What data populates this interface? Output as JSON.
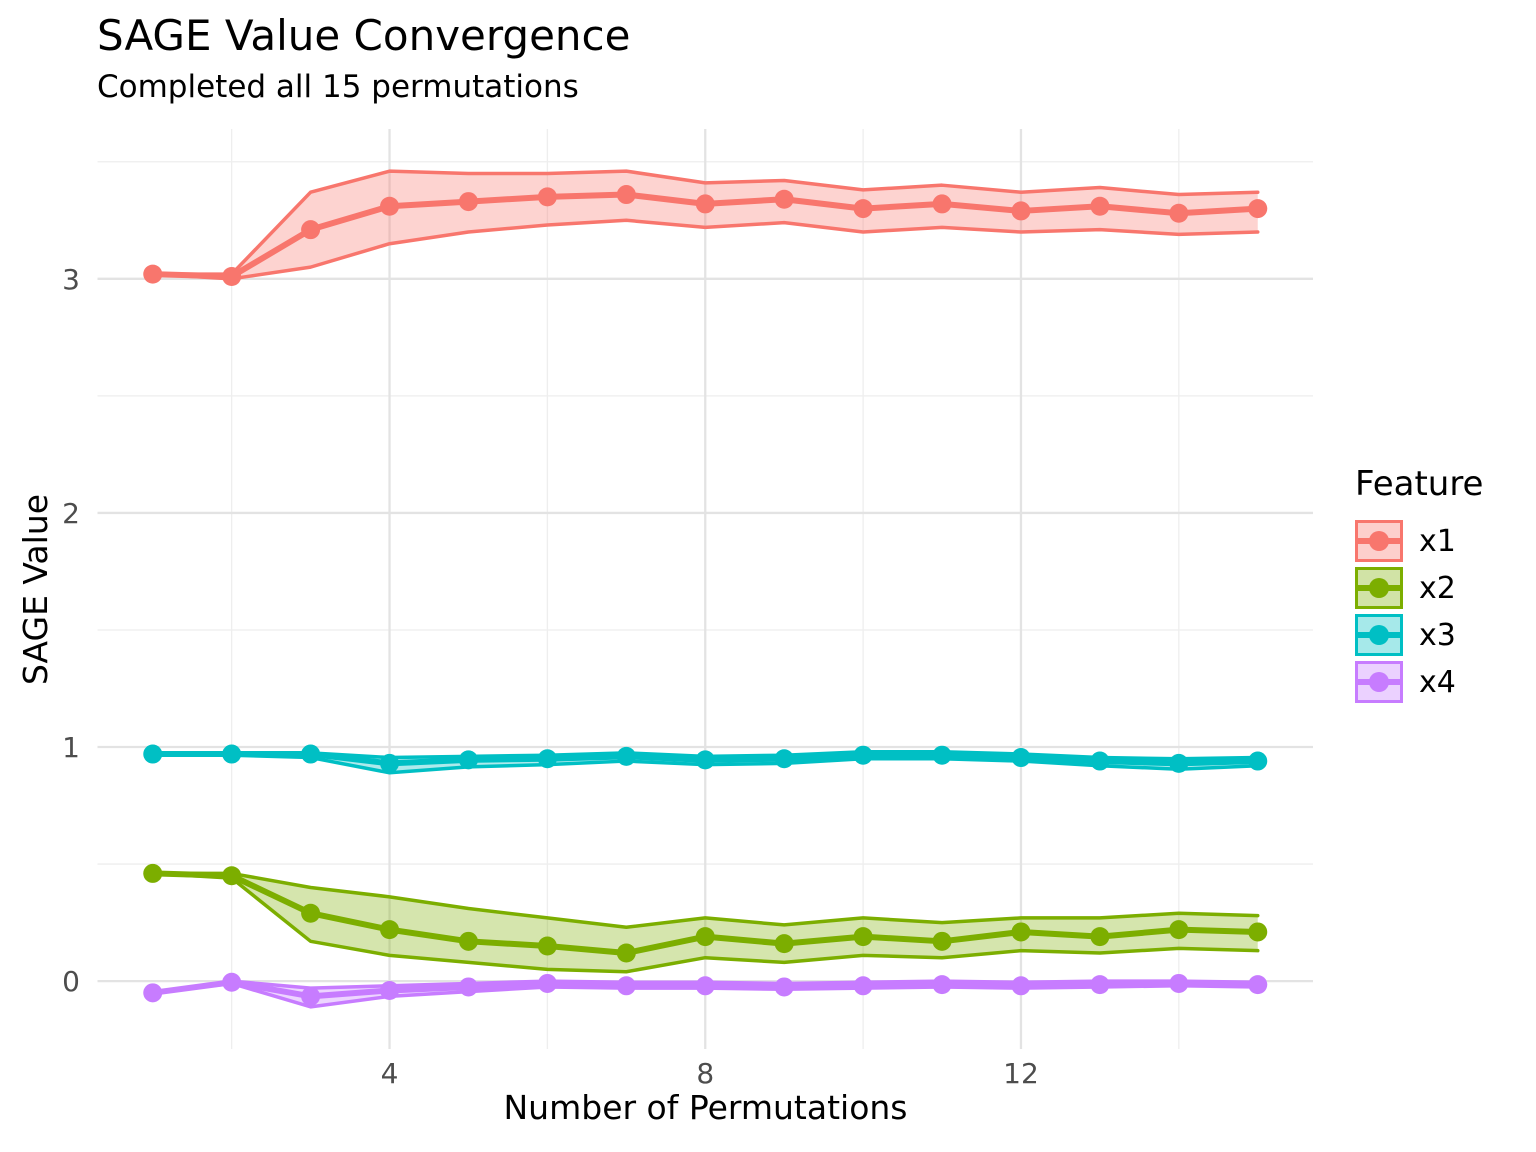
{
  "title": "SAGE Value Convergence",
  "subtitle": "Completed all 15 permutations",
  "chart_data": {
    "type": "line",
    "title": "SAGE Value Convergence",
    "subtitle": "Completed all 15 permutations",
    "xlabel": "Number of Permutations",
    "ylabel": "SAGE Value",
    "legend_title": "Feature",
    "legend_position": "right",
    "grid": "major+minor, light gray on white, no axis lines, no tick marks",
    "x": [
      1,
      2,
      3,
      4,
      5,
      6,
      7,
      8,
      9,
      10,
      11,
      12,
      13,
      14,
      15
    ],
    "x_ticks": [
      4,
      8,
      12
    ],
    "y_ticks": [
      0,
      1,
      2,
      3
    ],
    "x_minor_gridlines": [
      2,
      6,
      10,
      14
    ],
    "y_minor_gridlines": [
      0.5,
      1.5,
      2.5,
      3.5
    ],
    "xlim": [
      0.3,
      15.7
    ],
    "ylim": [
      -0.29,
      3.64
    ],
    "tick_label_color": "#4D4D4D",
    "gridline_major_color": "#E3E3E3",
    "gridline_minor_color": "#EEEEEE",
    "series": [
      {
        "name": "x1",
        "color": "#F8766D",
        "values": [
          3.02,
          3.01,
          3.21,
          3.31,
          3.33,
          3.35,
          3.36,
          3.32,
          3.34,
          3.3,
          3.32,
          3.29,
          3.31,
          3.28,
          3.3
        ],
        "lower": [
          3.02,
          3.0,
          3.05,
          3.15,
          3.2,
          3.23,
          3.25,
          3.22,
          3.24,
          3.2,
          3.22,
          3.2,
          3.21,
          3.19,
          3.2
        ],
        "upper": [
          3.02,
          3.02,
          3.37,
          3.46,
          3.45,
          3.45,
          3.46,
          3.41,
          3.42,
          3.38,
          3.4,
          3.37,
          3.39,
          3.36,
          3.37
        ]
      },
      {
        "name": "x2",
        "color": "#7CAE00",
        "values": [
          0.46,
          0.45,
          0.29,
          0.22,
          0.17,
          0.15,
          0.12,
          0.19,
          0.16,
          0.19,
          0.17,
          0.21,
          0.19,
          0.22,
          0.21
        ],
        "lower": [
          0.46,
          0.44,
          0.17,
          0.11,
          0.08,
          0.05,
          0.04,
          0.1,
          0.08,
          0.11,
          0.1,
          0.13,
          0.12,
          0.14,
          0.13
        ],
        "upper": [
          0.46,
          0.46,
          0.4,
          0.36,
          0.31,
          0.27,
          0.23,
          0.27,
          0.24,
          0.27,
          0.25,
          0.27,
          0.27,
          0.29,
          0.28
        ]
      },
      {
        "name": "x3",
        "color": "#00BFC4",
        "values": [
          0.97,
          0.97,
          0.97,
          0.93,
          0.945,
          0.95,
          0.96,
          0.945,
          0.95,
          0.965,
          0.965,
          0.955,
          0.94,
          0.93,
          0.94
        ],
        "lower": [
          0.97,
          0.965,
          0.955,
          0.89,
          0.915,
          0.925,
          0.94,
          0.925,
          0.93,
          0.95,
          0.95,
          0.94,
          0.92,
          0.905,
          0.92
        ],
        "upper": [
          0.97,
          0.97,
          0.975,
          0.955,
          0.96,
          0.965,
          0.975,
          0.96,
          0.965,
          0.98,
          0.98,
          0.97,
          0.955,
          0.95,
          0.955
        ]
      },
      {
        "name": "x4",
        "color": "#C77CFF",
        "values": [
          -0.05,
          -0.005,
          -0.065,
          -0.04,
          -0.025,
          -0.01,
          -0.02,
          -0.02,
          -0.025,
          -0.02,
          -0.015,
          -0.02,
          -0.015,
          -0.01,
          -0.015
        ],
        "lower": [
          -0.05,
          -0.01,
          -0.11,
          -0.065,
          -0.045,
          -0.025,
          -0.03,
          -0.03,
          -0.035,
          -0.03,
          -0.025,
          -0.03,
          -0.025,
          -0.02,
          -0.025
        ],
        "upper": [
          -0.05,
          0.0,
          -0.03,
          -0.02,
          -0.01,
          0.0,
          -0.005,
          -0.005,
          -0.01,
          -0.005,
          0.0,
          -0.005,
          0.0,
          0.0,
          -0.005
        ]
      }
    ]
  },
  "legend": {
    "title": "Feature",
    "items": [
      {
        "label": "x1",
        "color": "#F8766D"
      },
      {
        "label": "x2",
        "color": "#7CAE00"
      },
      {
        "label": "x3",
        "color": "#00BFC4"
      },
      {
        "label": "x4",
        "color": "#C77CFF"
      }
    ]
  }
}
